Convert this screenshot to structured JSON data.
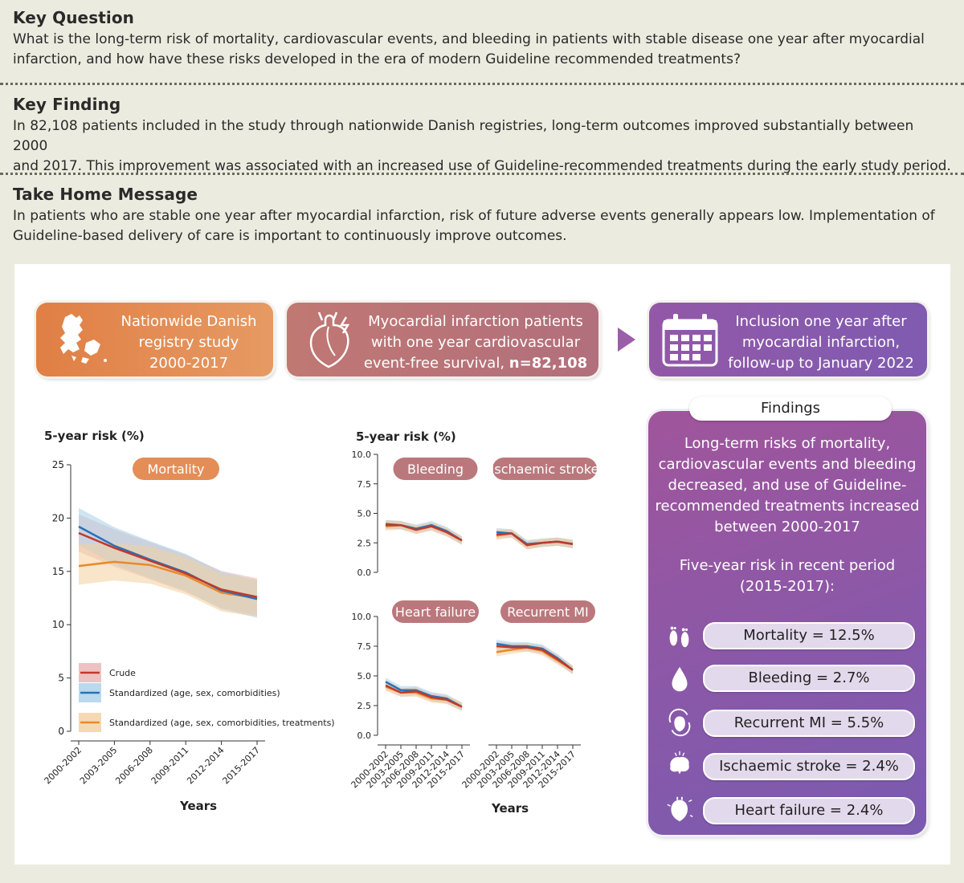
{
  "sections": {
    "key_question": {
      "title": "Key Question",
      "line1": "What is the long-term risk of mortality, cardiovascular events, and bleeding in patients with stable disease one year after myocardial",
      "line2": "infarction, and how have these risks developed in the era of modern Guideline recommended treatments?"
    },
    "key_finding": {
      "title": "Key Finding",
      "line1": "In 82,108 patients included in the study through nationwide Danish registries, long-term outcomes improved substantially between 2000",
      "line2": "and 2017. This improvement was associated with an increased use of Guideline-recommended treatments during the early study period."
    },
    "take_home": {
      "title": "Take Home Message",
      "line1": "In patients who are stable one year after myocardial infarction, risk of future adverse events generally appears low. Implementation of",
      "line2": "Guideline-based delivery of care is important to continuously improve outcomes."
    }
  },
  "flow": {
    "box1": {
      "l1": "Nationwide Danish",
      "l2": "registry study",
      "l3": "2000-2017"
    },
    "box2": {
      "l1": "Myocardial infarction patients",
      "l2": "with one year cardiovascular",
      "l3": "event-free survival, ",
      "l3b": "n=82,108"
    },
    "box3": {
      "l1": "Inclusion one year after",
      "l2": "myocardial infarction,",
      "l3": "follow-up to January 2022"
    }
  },
  "findings": {
    "title": "Findings",
    "text": [
      "Long-term risks of mortality,",
      "cardiovascular events and bleeding",
      "decreased, and use of Guideline-",
      "recommended treatments increased",
      "between 2000-2017"
    ],
    "sub": [
      "Five-year risk in recent period",
      "(2015-2017):"
    ],
    "items": [
      {
        "label": "Mortality = 12.5%",
        "icon": "footprints-icon"
      },
      {
        "label": "Bleeding = 2.7%",
        "icon": "blood-drop-icon"
      },
      {
        "label": "Recurrent MI = 5.5%",
        "icon": "recurrent-heart-icon"
      },
      {
        "label": "Ischaemic stroke = 2.4%",
        "icon": "brain-icon"
      },
      {
        "label": "Heart failure = 2.4%",
        "icon": "heart-icon"
      }
    ]
  },
  "colors": {
    "orange_box": "#e08a4e",
    "rose_box": "#b97478",
    "purple_box": "#8f57a6",
    "crude": "#c0392b",
    "standardized": "#2872b8",
    "standardized_treat": "#e88a2a"
  },
  "chart_data": [
    {
      "type": "line",
      "title": "Mortality",
      "ylabel": "5-year risk (%)",
      "xlabel": "Years",
      "x": [
        "2000-2002",
        "2003-2005",
        "2006-2008",
        "2009-2011",
        "2012-2014",
        "2015-2017"
      ],
      "ylim": [
        0,
        25
      ],
      "yticks": [
        "0",
        "5",
        "10",
        "15",
        "20",
        "25"
      ],
      "series": [
        {
          "name": "Crude",
          "values": [
            18.6,
            17.2,
            16.0,
            14.8,
            13.3,
            12.6
          ]
        },
        {
          "name": "Standardized (age, sex, comorbidities)",
          "values": [
            19.2,
            17.4,
            16.1,
            14.9,
            13.2,
            12.4
          ]
        },
        {
          "name": "Standardized (age, sex, comorbidities, treatments)",
          "values": [
            15.5,
            15.9,
            15.6,
            14.6,
            13.0,
            12.5
          ]
        }
      ],
      "legend": "bottom-left"
    },
    {
      "type": "line",
      "title": "Bleeding",
      "ylabel": "5-year risk (%)",
      "x": [
        "2000-2002",
        "2003-2005",
        "2006-2008",
        "2009-2011",
        "2012-2014",
        "2015-2017"
      ],
      "ylim": [
        0,
        10
      ],
      "yticks": [
        "0.0",
        "2.5",
        "5.0",
        "7.5",
        "10.0"
      ],
      "series": [
        {
          "name": "Crude",
          "values": [
            4.0,
            4.0,
            3.6,
            3.9,
            3.4,
            2.7
          ]
        },
        {
          "name": "Standardized (age, sex, comorbidities)",
          "values": [
            4.1,
            4.0,
            3.7,
            4.0,
            3.5,
            2.7
          ]
        },
        {
          "name": "Standardized (age, sex, comorbidities, treatments)",
          "values": [
            3.9,
            4.0,
            3.6,
            3.9,
            3.4,
            2.7
          ]
        }
      ]
    },
    {
      "type": "line",
      "title": "Ischaemic stroke",
      "x": [
        "2000-2002",
        "2003-2005",
        "2006-2008",
        "2009-2011",
        "2012-2014",
        "2015-2017"
      ],
      "ylim": [
        0,
        10
      ],
      "series": [
        {
          "name": "Crude",
          "values": [
            3.2,
            3.3,
            2.3,
            2.5,
            2.6,
            2.4
          ]
        },
        {
          "name": "Standardized (age, sex, comorbidities)",
          "values": [
            3.4,
            3.3,
            2.4,
            2.5,
            2.6,
            2.4
          ]
        },
        {
          "name": "Standardized (age, sex, comorbidities, treatments)",
          "values": [
            3.1,
            3.3,
            2.3,
            2.5,
            2.6,
            2.4
          ]
        }
      ]
    },
    {
      "type": "line",
      "title": "Heart failure",
      "xlabel": "Years",
      "x": [
        "2000-2002",
        "2003-2005",
        "2006-2008",
        "2009-2011",
        "2012-2014",
        "2015-2017"
      ],
      "ylim": [
        0,
        10
      ],
      "yticks": [
        "0.0",
        "2.5",
        "5.0",
        "7.5",
        "10.0"
      ],
      "series": [
        {
          "name": "Crude",
          "values": [
            4.2,
            3.6,
            3.7,
            3.2,
            3.0,
            2.4
          ]
        },
        {
          "name": "Standardized (age, sex, comorbidities)",
          "values": [
            4.5,
            3.8,
            3.8,
            3.3,
            3.1,
            2.4
          ]
        },
        {
          "name": "Standardized (age, sex, comorbidities, treatments)",
          "values": [
            4.1,
            3.6,
            3.6,
            3.1,
            3.0,
            2.4
          ]
        }
      ]
    },
    {
      "type": "line",
      "title": "Recurrent MI",
      "x": [
        "2000-2002",
        "2003-2005",
        "2006-2008",
        "2009-2011",
        "2012-2014",
        "2015-2017"
      ],
      "ylim": [
        0,
        10
      ],
      "series": [
        {
          "name": "Crude",
          "values": [
            7.5,
            7.4,
            7.4,
            7.2,
            6.4,
            5.5
          ]
        },
        {
          "name": "Standardized (age, sex, comorbidities)",
          "values": [
            7.7,
            7.5,
            7.5,
            7.3,
            6.5,
            5.5
          ]
        },
        {
          "name": "Standardized (age, sex, comorbidities, treatments)",
          "values": [
            7.0,
            7.2,
            7.4,
            7.1,
            6.3,
            5.5
          ]
        }
      ]
    }
  ]
}
